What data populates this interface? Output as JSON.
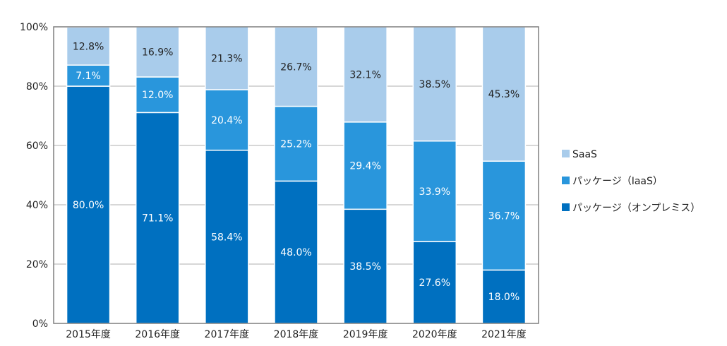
{
  "chart_data": {
    "type": "bar",
    "stacked": true,
    "categories": [
      "2015年度",
      "2016年度",
      "2017年度",
      "2018年度",
      "2019年度",
      "2020年度",
      "2021年度"
    ],
    "series": [
      {
        "name": "パッケージ（オンプレミス）",
        "values": [
          80.0,
          71.1,
          58.4,
          48.0,
          38.5,
          27.6,
          18.0
        ],
        "labels": [
          "80.0%",
          "71.1%",
          "58.4%",
          "48.0%",
          "38.5%",
          "27.6%",
          "18.0%"
        ],
        "color": "#0070C0",
        "label_color": "#ffffff"
      },
      {
        "name": "パッケージ（IaaS）",
        "values": [
          7.1,
          12.0,
          20.4,
          25.2,
          29.4,
          33.9,
          36.7
        ],
        "labels": [
          "7.1%",
          "12.0%",
          "20.4%",
          "25.2%",
          "29.4%",
          "33.9%",
          "36.7%"
        ],
        "color": "#2996DC",
        "label_color": "#ffffff"
      },
      {
        "name": "SaaS",
        "values": [
          12.8,
          16.9,
          21.3,
          26.7,
          32.1,
          38.5,
          45.3
        ],
        "labels": [
          "12.8%",
          "16.9%",
          "21.3%",
          "26.7%",
          "32.1%",
          "38.5%",
          "45.3%"
        ],
        "color": "#A9CCEB",
        "label_color": "#222222"
      }
    ],
    "yticks": [
      "0%",
      "20%",
      "40%",
      "60%",
      "80%",
      "100%"
    ],
    "ylim": [
      0,
      100
    ],
    "grid": true,
    "legend": [
      "SaaS",
      "パッケージ（IaaS）",
      "パッケージ（オンプレミス）"
    ],
    "legend_position": "right",
    "gridline_color": "#BFBFBF",
    "frame_color": "#7F7F7F"
  }
}
